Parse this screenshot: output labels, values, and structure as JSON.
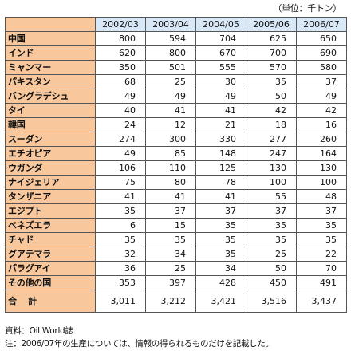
{
  "unit_label": "（単位：千トン）",
  "columns": [
    "2002/03",
    "2003/04",
    "2004/05",
    "2005/06",
    "2006/07"
  ],
  "rows": [
    {
      "country": "中国",
      "values": [
        "800",
        "594",
        "704",
        "625",
        "650"
      ]
    },
    {
      "country": "インド",
      "values": [
        "620",
        "800",
        "670",
        "700",
        "690"
      ]
    },
    {
      "country": "ミャンマー",
      "values": [
        "350",
        "501",
        "555",
        "570",
        "580"
      ]
    },
    {
      "country": "パキスタン",
      "values": [
        "68",
        "25",
        "30",
        "35",
        "37"
      ]
    },
    {
      "country": "バングラデシュ",
      "values": [
        "49",
        "49",
        "49",
        "50",
        "49"
      ]
    },
    {
      "country": "タイ",
      "values": [
        "40",
        "41",
        "41",
        "42",
        "42"
      ]
    },
    {
      "country": "韓国",
      "values": [
        "24",
        "12",
        "21",
        "18",
        "16"
      ]
    },
    {
      "country": "スーダン",
      "values": [
        "274",
        "300",
        "330",
        "277",
        "260"
      ]
    },
    {
      "country": "エチオピア",
      "values": [
        "49",
        "85",
        "148",
        "247",
        "164"
      ]
    },
    {
      "country": "ウガンダ",
      "values": [
        "106",
        "110",
        "125",
        "130",
        "130"
      ]
    },
    {
      "country": "ナイジェリア",
      "values": [
        "75",
        "80",
        "78",
        "100",
        "100"
      ]
    },
    {
      "country": "タンザニア",
      "values": [
        "41",
        "41",
        "41",
        "55",
        "48"
      ]
    },
    {
      "country": "エジプト",
      "values": [
        "35",
        "37",
        "37",
        "37",
        "37"
      ]
    },
    {
      "country": "ベネズエラ",
      "values": [
        "6",
        "15",
        "35",
        "35",
        "35"
      ]
    },
    {
      "country": "チャド",
      "values": [
        "35",
        "35",
        "35",
        "35",
        "35"
      ]
    },
    {
      "country": "グアテマラ",
      "values": [
        "32",
        "34",
        "35",
        "25",
        "22"
      ]
    },
    {
      "country": "パラグアイ",
      "values": [
        "36",
        "25",
        "34",
        "50",
        "70"
      ]
    },
    {
      "country": "その他の国",
      "values": [
        "353",
        "397",
        "428",
        "450",
        "491"
      ]
    }
  ],
  "total": {
    "label": "合計",
    "values": [
      "3,011",
      "3,212",
      "3,421",
      "3,516",
      "3,437"
    ]
  },
  "source_note": "資料：Oil World誌",
  "footnote": "注：2006/07年の生産については、情報の得られるものだけを記載した。"
}
